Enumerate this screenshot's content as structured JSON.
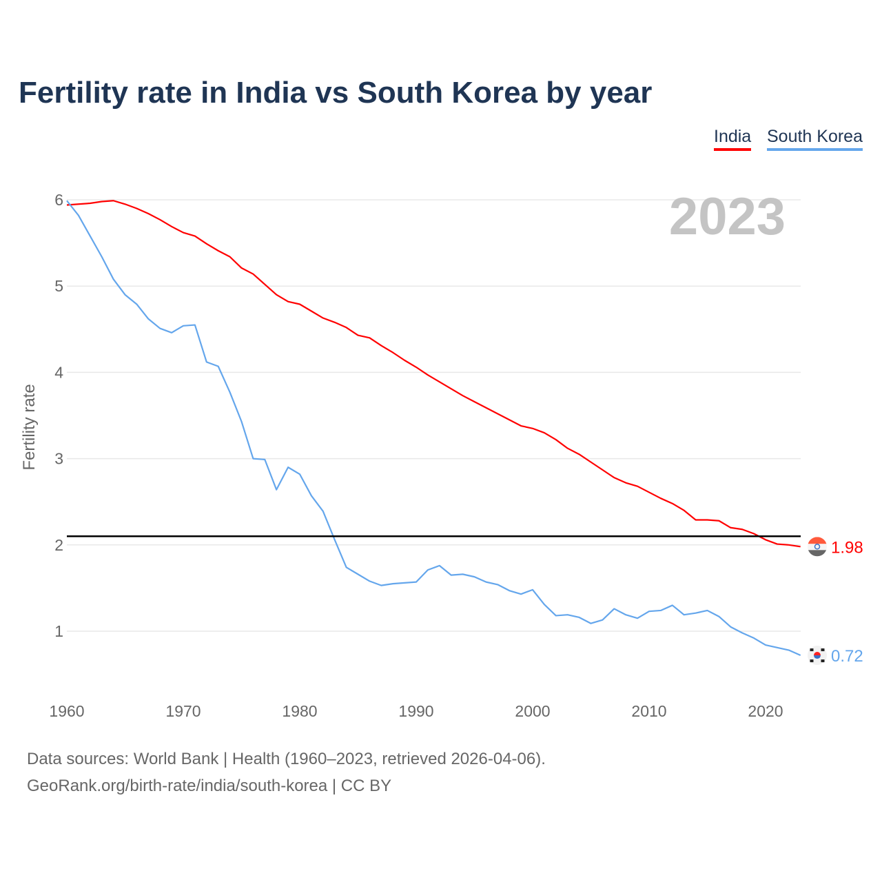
{
  "chart_data": {
    "type": "line",
    "title": "Fertility rate in India vs South Korea by year",
    "ylabel": "Fertility rate",
    "xlabel": "",
    "xlim": [
      1960,
      2023
    ],
    "ylim": [
      0.4,
      6.0
    ],
    "x_ticks": [
      1960,
      1970,
      1980,
      1990,
      2000,
      2010,
      2020
    ],
    "y_ticks": [
      1,
      2,
      3,
      4,
      5,
      6
    ],
    "grid": true,
    "legend_position": "top-right",
    "year_label": "2023",
    "reference_line": {
      "value": 2.1,
      "color": "#000000"
    },
    "x": [
      1960,
      1961,
      1962,
      1963,
      1964,
      1965,
      1966,
      1967,
      1968,
      1969,
      1970,
      1971,
      1972,
      1973,
      1974,
      1975,
      1976,
      1977,
      1978,
      1979,
      1980,
      1981,
      1982,
      1983,
      1984,
      1985,
      1986,
      1987,
      1988,
      1989,
      1990,
      1991,
      1992,
      1993,
      1994,
      1995,
      1996,
      1997,
      1998,
      1999,
      2000,
      2001,
      2002,
      2003,
      2004,
      2005,
      2006,
      2007,
      2008,
      2009,
      2010,
      2011,
      2012,
      2013,
      2014,
      2015,
      2016,
      2017,
      2018,
      2019,
      2020,
      2021,
      2022,
      2023
    ],
    "series": [
      {
        "name": "India",
        "color": "#ff0000",
        "end_label": "1.98",
        "flag": "india-flag",
        "values": [
          5.94,
          5.95,
          5.96,
          5.98,
          5.99,
          5.95,
          5.9,
          5.84,
          5.77,
          5.69,
          5.62,
          5.58,
          5.49,
          5.41,
          5.34,
          5.21,
          5.14,
          5.02,
          4.9,
          4.82,
          4.79,
          4.71,
          4.63,
          4.58,
          4.52,
          4.43,
          4.4,
          4.31,
          4.23,
          4.14,
          4.06,
          3.97,
          3.89,
          3.81,
          3.73,
          3.66,
          3.59,
          3.52,
          3.45,
          3.38,
          3.35,
          3.3,
          3.22,
          3.12,
          3.05,
          2.96,
          2.87,
          2.78,
          2.72,
          2.68,
          2.61,
          2.54,
          2.48,
          2.4,
          2.29,
          2.29,
          2.28,
          2.2,
          2.18,
          2.13,
          2.06,
          2.01,
          2.0,
          1.98
        ]
      },
      {
        "name": "South Korea",
        "color": "#64a6ec",
        "end_label": "0.72",
        "flag": "south-korea-flag",
        "values": [
          5.99,
          5.82,
          5.58,
          5.34,
          5.08,
          4.9,
          4.79,
          4.62,
          4.51,
          4.46,
          4.54,
          4.55,
          4.12,
          4.07,
          3.77,
          3.43,
          3.0,
          2.99,
          2.64,
          2.9,
          2.82,
          2.57,
          2.39,
          2.06,
          1.74,
          1.66,
          1.58,
          1.53,
          1.55,
          1.56,
          1.57,
          1.71,
          1.76,
          1.65,
          1.66,
          1.63,
          1.57,
          1.54,
          1.47,
          1.43,
          1.48,
          1.31,
          1.18,
          1.19,
          1.16,
          1.09,
          1.13,
          1.26,
          1.19,
          1.15,
          1.23,
          1.24,
          1.3,
          1.19,
          1.21,
          1.24,
          1.17,
          1.05,
          0.98,
          0.92,
          0.84,
          0.81,
          0.78,
          0.72
        ]
      }
    ]
  },
  "footer": {
    "line1": "Data sources: World Bank | Health (1960–2023, retrieved 2026-04-06).",
    "line2": "GeoRank.org/birth-rate/india/south-korea | CC BY"
  }
}
